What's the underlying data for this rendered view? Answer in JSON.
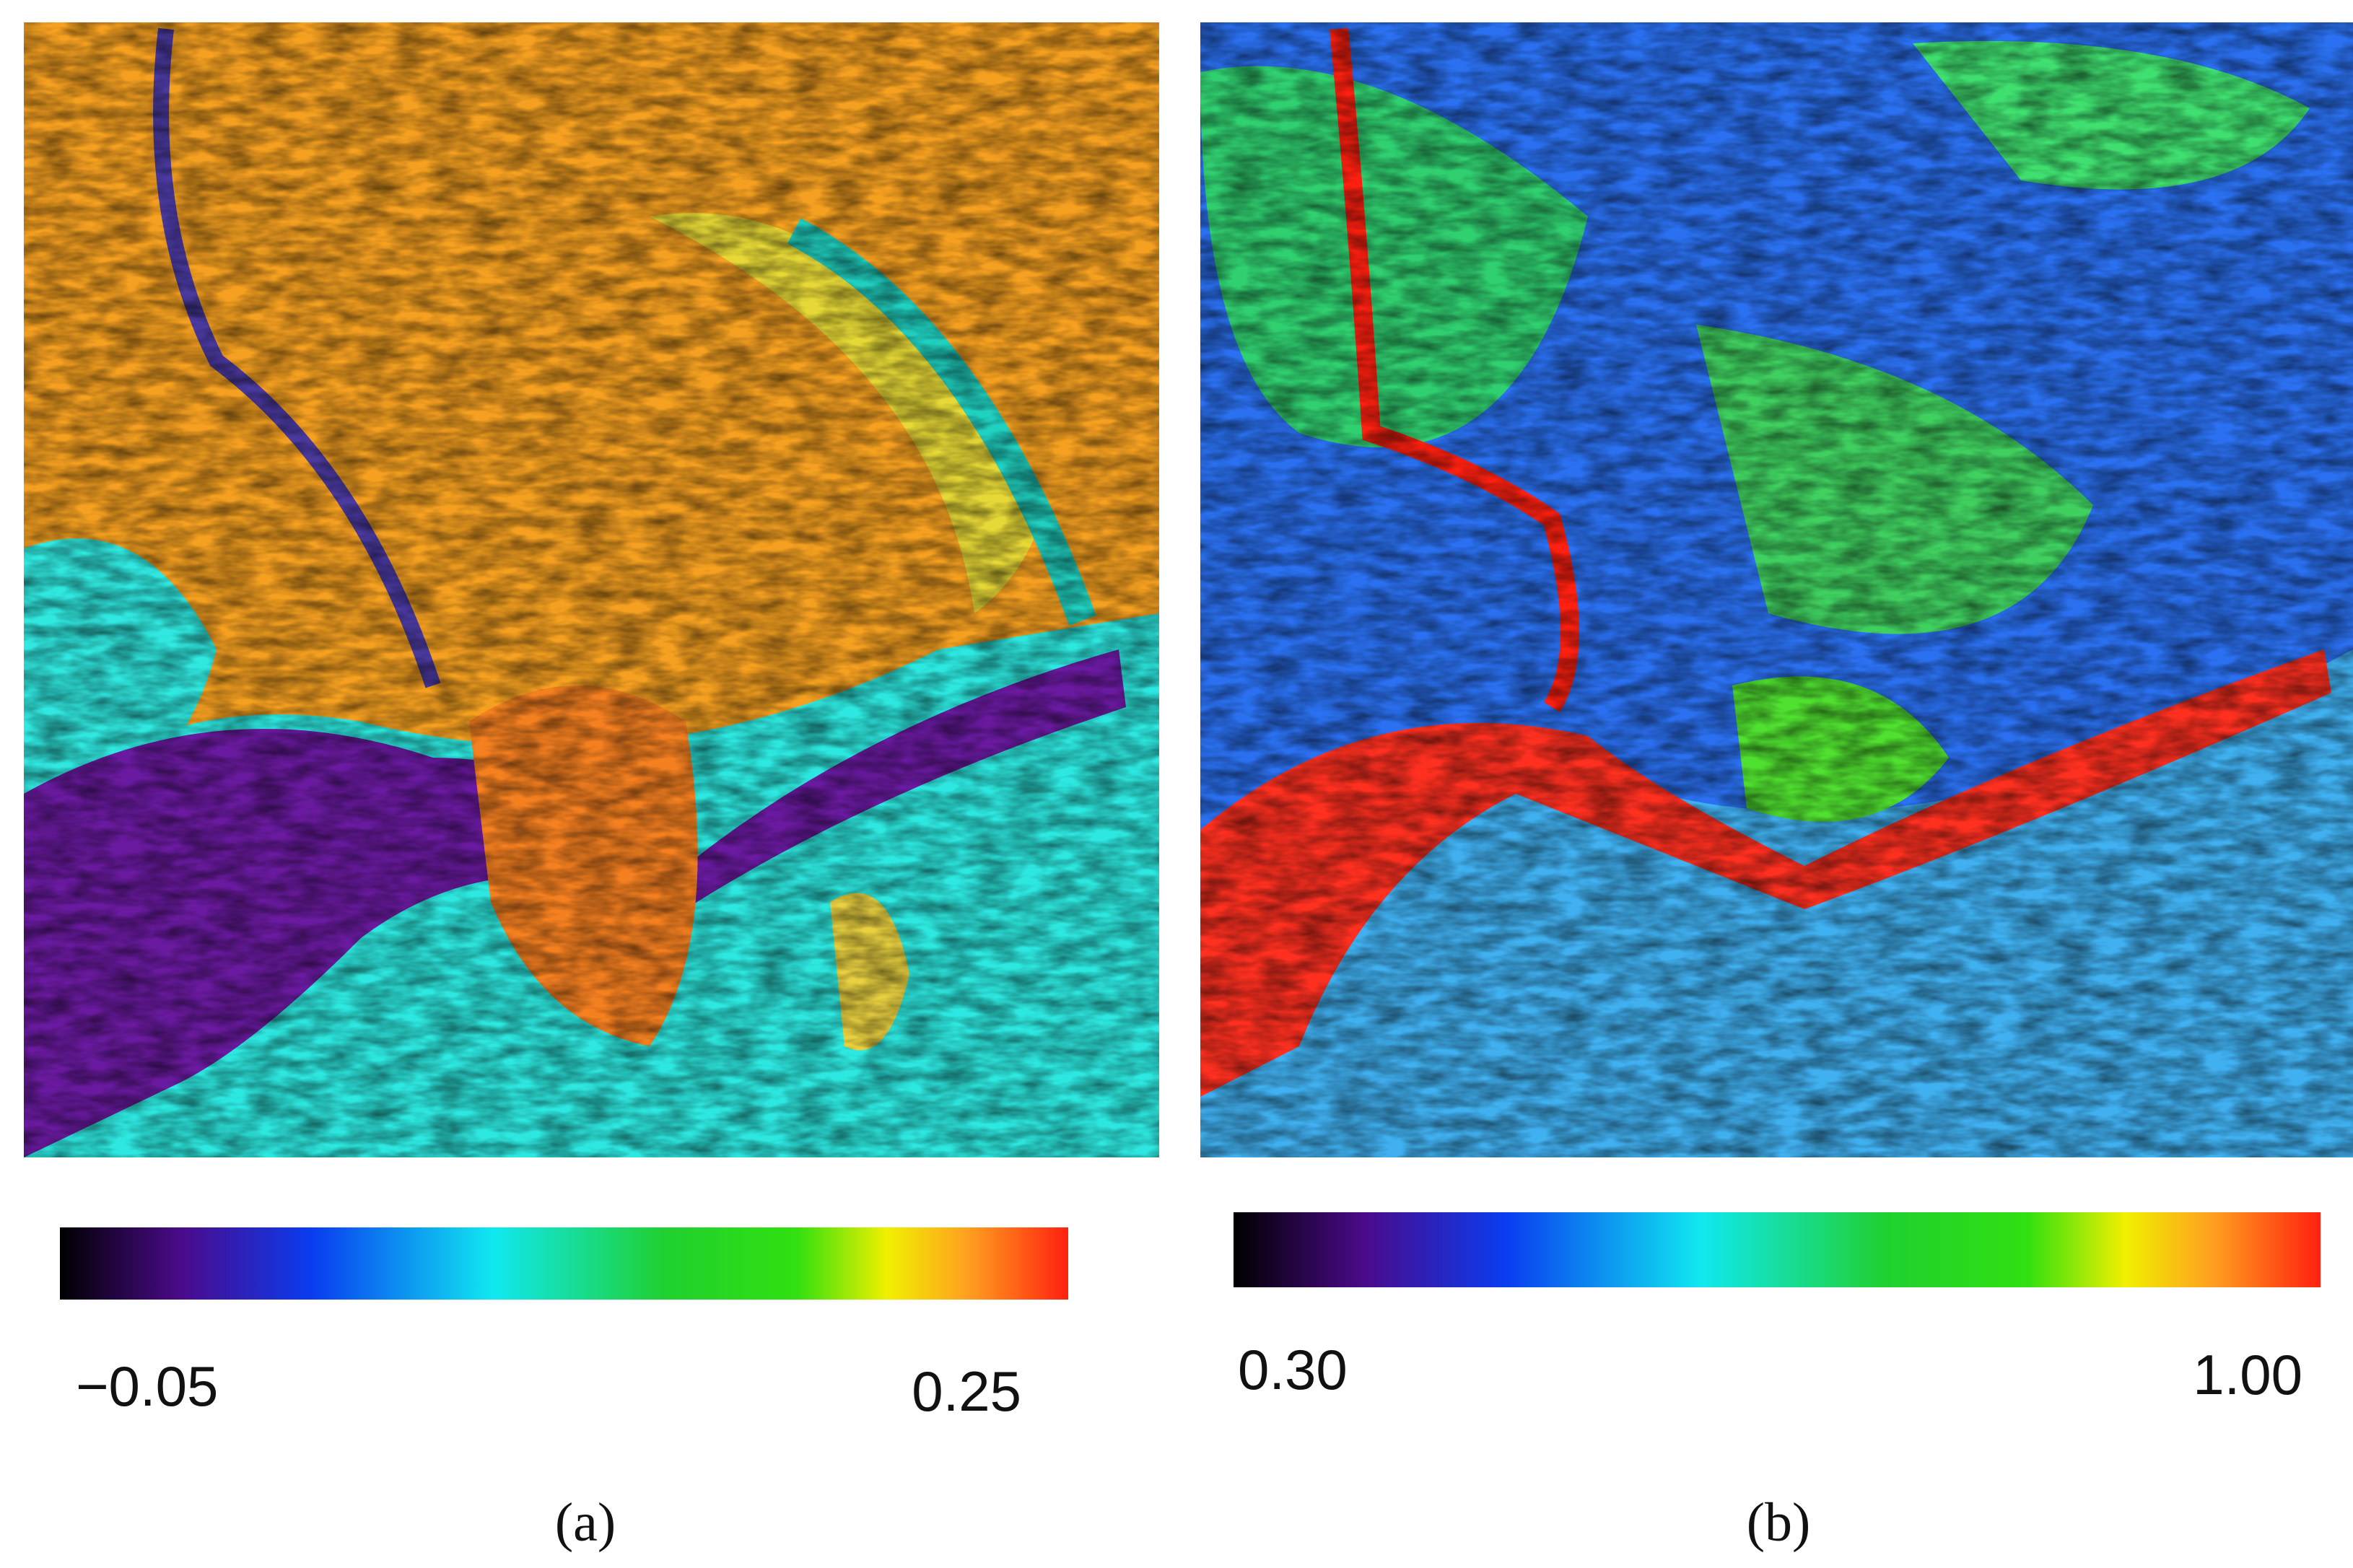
{
  "panels": [
    {
      "label": "(a)",
      "colorbar": {
        "min_label": "−0.05",
        "max_label": "0.25"
      }
    },
    {
      "label": "(b)",
      "colorbar": {
        "min_label": "0.30",
        "max_label": "1.00"
      }
    }
  ]
}
